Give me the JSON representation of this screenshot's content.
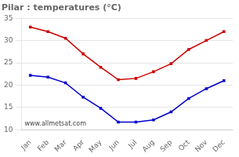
{
  "chart_data": {
    "type": "line",
    "title": "Pilar : temperatures (°C)",
    "categories": [
      "Jan",
      "Feb",
      "Mar",
      "Apr",
      "May",
      "Jun",
      "Jul",
      "Aug",
      "Sep",
      "Oct",
      "Nov",
      "Dec"
    ],
    "series": [
      {
        "color": "#cc0000",
        "marker": "square",
        "values": [
          33,
          32,
          30.5,
          27,
          24,
          21.2,
          21.5,
          23,
          24.8,
          28,
          30,
          32
        ]
      },
      {
        "color": "#0000cc",
        "marker": "square",
        "values": [
          22.2,
          21.8,
          20.5,
          17.3,
          14.8,
          11.7,
          11.7,
          12.2,
          14.0,
          17.0,
          19.2,
          21.0
        ]
      }
    ],
    "ylim": [
      10,
      35
    ],
    "yticks": [
      10,
      15,
      20,
      25,
      30,
      35
    ],
    "grid": "y",
    "annotations": [
      "www.allmetsat.com"
    ]
  }
}
